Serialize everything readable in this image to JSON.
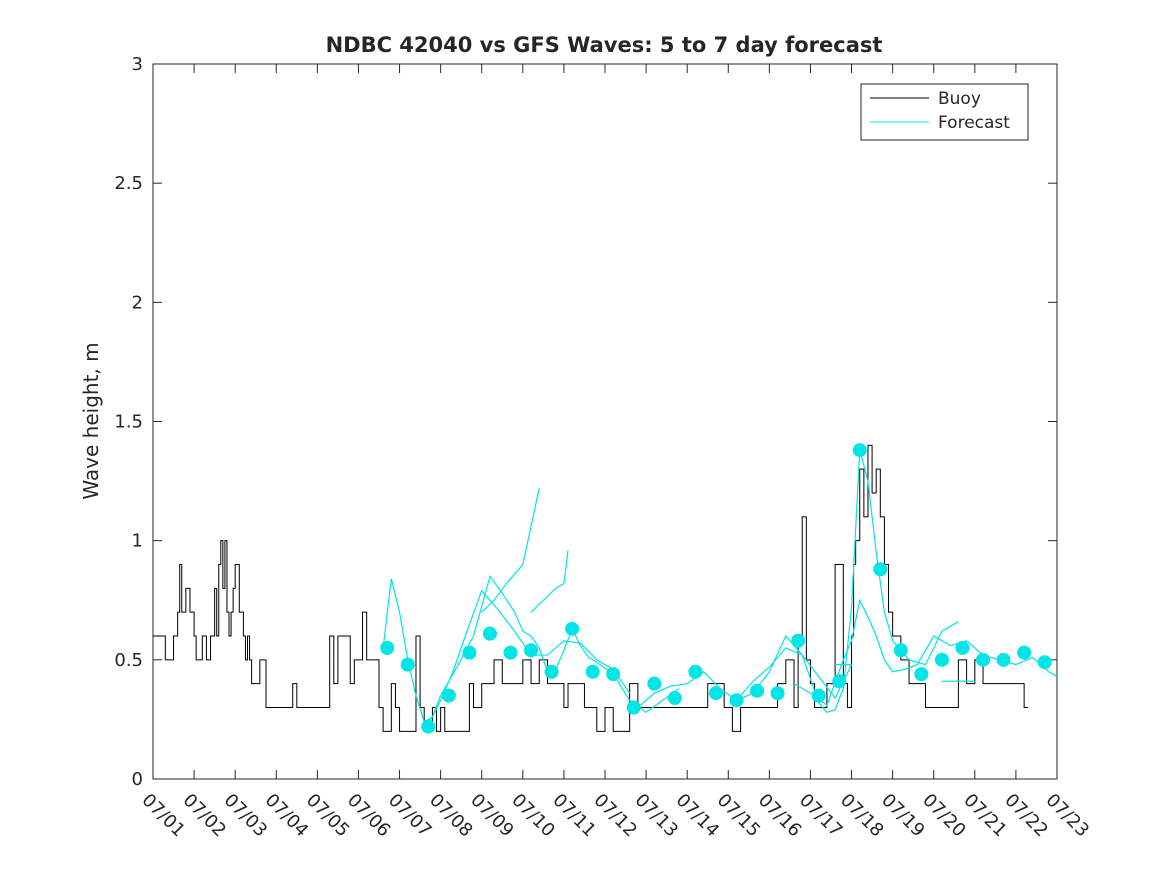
{
  "chart_data": {
    "type": "line",
    "title": "NDBC 42040 vs GFS Waves: 5 to 7 day forecast",
    "xlabel": "",
    "ylabel": "Wave height, m",
    "ylim": [
      0,
      3
    ],
    "yticks": [
      0,
      0.5,
      1,
      1.5,
      2,
      2.5,
      3
    ],
    "ytick_labels": [
      "0",
      "0.5",
      "1",
      "1.5",
      "2",
      "2.5",
      "3"
    ],
    "xlim": [
      1,
      23
    ],
    "xtick_labels": [
      "07/01",
      "07/02",
      "07/03",
      "07/04",
      "07/05",
      "07/06",
      "07/07",
      "07/08",
      "07/09",
      "07/10",
      "07/11",
      "07/12",
      "07/13",
      "07/14",
      "07/15",
      "07/16",
      "07/17",
      "07/18",
      "07/19",
      "07/20",
      "07/21",
      "07/22",
      "07/23"
    ],
    "legend": {
      "placement": "top-right",
      "entries": [
        {
          "label": "Buoy",
          "color": "#000000"
        },
        {
          "label": "Forecast",
          "color": "#00e5e5"
        }
      ]
    },
    "colors": {
      "buoy": "#000000",
      "forecast": "#00e5e5",
      "markers": "#00e5e5",
      "axes": "#262626"
    },
    "grid": false,
    "series": [
      {
        "name": "Buoy",
        "x": [
          1.0,
          1.3,
          1.5,
          1.6,
          1.65,
          1.7,
          1.8,
          1.9,
          2.0,
          2.05,
          2.2,
          2.3,
          2.4,
          2.5,
          2.55,
          2.6,
          2.65,
          2.7,
          2.75,
          2.8,
          2.85,
          2.9,
          2.95,
          3.0,
          3.1,
          3.2,
          3.25,
          3.3,
          3.35,
          3.4,
          3.5,
          3.6,
          3.75,
          3.9,
          4.0,
          4.2,
          4.4,
          4.5,
          4.6,
          4.8,
          5.0,
          5.1,
          5.3,
          5.4,
          5.5,
          5.7,
          5.8,
          5.9,
          6.0,
          6.1,
          6.2,
          6.4,
          6.5,
          6.6,
          6.8,
          6.9,
          7.0,
          7.1,
          7.2,
          7.4,
          7.5,
          7.6,
          7.8,
          7.9,
          8.0,
          8.1,
          8.3,
          8.5,
          8.7,
          8.8,
          9.0,
          9.2,
          9.3,
          9.5,
          9.7,
          9.8,
          10.0,
          10.2,
          10.4,
          10.6,
          10.8,
          11.0,
          11.1,
          11.2,
          11.4,
          11.5,
          11.6,
          11.8,
          12.0,
          12.2,
          12.4,
          12.6,
          12.8,
          13.0,
          13.2,
          13.5,
          13.8,
          14.0,
          14.1,
          14.3,
          14.5,
          14.7,
          14.9,
          15.0,
          15.1,
          15.3,
          15.5,
          15.7,
          15.9,
          16.0,
          16.2,
          16.4,
          16.6,
          16.7,
          16.8,
          16.9,
          17.0,
          17.1,
          17.2,
          17.4,
          17.6,
          17.8,
          17.9,
          18.0,
          18.05,
          18.1,
          18.2,
          18.3,
          18.4,
          18.5,
          18.6,
          18.7,
          18.8,
          18.9,
          19.0,
          19.2,
          19.4,
          19.6,
          19.8,
          20.0,
          20.2,
          20.4,
          20.6,
          20.8,
          21.0,
          21.2,
          21.4,
          21.6,
          21.8,
          22.0,
          22.2,
          22.3
        ],
        "y": [
          0.6,
          0.5,
          0.6,
          0.7,
          0.9,
          0.7,
          0.8,
          0.7,
          0.6,
          0.5,
          0.6,
          0.5,
          0.6,
          0.8,
          0.6,
          0.9,
          1.0,
          0.8,
          1.0,
          0.7,
          0.6,
          0.7,
          0.8,
          0.9,
          0.7,
          0.6,
          0.5,
          0.6,
          0.5,
          0.4,
          0.4,
          0.5,
          0.3,
          0.3,
          0.3,
          0.3,
          0.4,
          0.3,
          0.3,
          0.3,
          0.3,
          0.3,
          0.6,
          0.4,
          0.6,
          0.6,
          0.4,
          0.5,
          0.5,
          0.7,
          0.5,
          0.5,
          0.3,
          0.2,
          0.4,
          0.3,
          0.2,
          0.2,
          0.2,
          0.6,
          0.3,
          0.2,
          0.3,
          0.2,
          0.3,
          0.2,
          0.2,
          0.2,
          0.4,
          0.3,
          0.4,
          0.4,
          0.5,
          0.4,
          0.4,
          0.4,
          0.5,
          0.4,
          0.5,
          0.4,
          0.4,
          0.3,
          0.4,
          0.4,
          0.4,
          0.3,
          0.3,
          0.2,
          0.3,
          0.2,
          0.2,
          0.4,
          0.3,
          0.3,
          0.3,
          0.3,
          0.3,
          0.3,
          0.3,
          0.3,
          0.4,
          0.4,
          0.3,
          0.3,
          0.2,
          0.3,
          0.3,
          0.3,
          0.3,
          0.3,
          0.4,
          0.5,
          0.3,
          0.6,
          1.1,
          0.5,
          0.4,
          0.3,
          0.3,
          0.4,
          0.9,
          0.4,
          0.3,
          0.6,
          0.9,
          1.0,
          1.3,
          1.1,
          1.4,
          1.2,
          1.3,
          1.1,
          0.9,
          0.7,
          0.6,
          0.5,
          0.4,
          0.4,
          0.3,
          0.3,
          0.3,
          0.3,
          0.5,
          0.4,
          0.5,
          0.4,
          0.4,
          0.4,
          0.4,
          0.4,
          0.3,
          0.3
        ]
      },
      {
        "name": "Forecast",
        "runs": [
          {
            "x": [
              6.6,
              6.8,
              7.0,
              7.2,
              7.4,
              7.6,
              7.8,
              8.0,
              8.3,
              8.6,
              9.0,
              9.4,
              9.8,
              10.2,
              10.6,
              11.0,
              11.4,
              11.8,
              12.2,
              12.6
            ],
            "y": [
              0.55,
              0.84,
              0.7,
              0.5,
              0.35,
              0.24,
              0.26,
              0.33,
              0.45,
              0.6,
              0.79,
              0.71,
              0.62,
              0.52,
              0.52,
              0.58,
              0.57,
              0.5,
              0.46,
              0.36
            ]
          },
          {
            "x": [
              7.6,
              7.8,
              8.0,
              8.4,
              8.8,
              9.2,
              9.5,
              9.8,
              10.0,
              10.2,
              10.4,
              10.6,
              10.8,
              11.0,
              11.2,
              11.4,
              11.6,
              11.8,
              12.2,
              12.6,
              13.0,
              13.4,
              13.8
            ],
            "y": [
              0.22,
              0.26,
              0.35,
              0.47,
              0.6,
              0.85,
              0.78,
              0.7,
              0.62,
              0.6,
              0.55,
              0.45,
              0.46,
              0.54,
              0.63,
              0.56,
              0.51,
              0.49,
              0.44,
              0.33,
              0.28,
              0.33,
              0.38
            ]
          },
          {
            "x": [
              9.0,
              9.3,
              9.6,
              10.0,
              10.2,
              10.4
            ],
            "y": [
              0.7,
              0.75,
              0.82,
              0.9,
              1.06,
              1.22
            ]
          },
          {
            "x": [
              10.2,
              10.5,
              10.8,
              11.0,
              11.1
            ],
            "y": [
              0.7,
              0.75,
              0.8,
              0.82,
              0.96
            ]
          },
          {
            "x": [
              12.8,
              13.2,
              13.6,
              14.0,
              14.4,
              14.8,
              15.2,
              15.6,
              16.0,
              16.4,
              16.8,
              17.2,
              17.6,
              18.0
            ],
            "y": [
              0.3,
              0.36,
              0.39,
              0.4,
              0.45,
              0.38,
              0.33,
              0.41,
              0.47,
              0.55,
              0.52,
              0.43,
              0.34,
              0.48
            ]
          },
          {
            "x": [
              15.2,
              15.6,
              16.0,
              16.4,
              16.8,
              17.2,
              17.4,
              17.6,
              17.8,
              18.0,
              18.2,
              18.4,
              18.6,
              18.8,
              19.0,
              19.4,
              19.8,
              20.2,
              20.6
            ],
            "y": [
              0.33,
              0.36,
              0.45,
              0.6,
              0.52,
              0.32,
              0.28,
              0.29,
              0.38,
              0.72,
              1.38,
              1.25,
              0.95,
              0.7,
              0.58,
              0.5,
              0.48,
              0.62,
              0.66
            ]
          },
          {
            "x": [
              16.6,
              17.0,
              17.4,
              17.8,
              18.0,
              18.2,
              18.4,
              18.6,
              18.8,
              19.0,
              19.3,
              19.6,
              20.0,
              20.4,
              20.8,
              21.2,
              21.6,
              22.0,
              22.4,
              22.8,
              23.0
            ],
            "y": [
              0.4,
              0.36,
              0.31,
              0.5,
              0.58,
              0.75,
              0.68,
              0.6,
              0.5,
              0.45,
              0.46,
              0.48,
              0.6,
              0.56,
              0.58,
              0.52,
              0.5,
              0.48,
              0.51,
              0.45,
              0.43
            ]
          },
          {
            "x": [
              17.6,
              18.0
            ],
            "y": [
              0.48,
              0.48
            ]
          },
          {
            "x": [
              20.2,
              20.6,
              21.0
            ],
            "y": [
              0.41,
              0.41,
              0.41
            ]
          }
        ],
        "markers": {
          "x": [
            6.7,
            7.2,
            7.7,
            8.2,
            8.7,
            9.2,
            9.7,
            10.2,
            10.7,
            11.2,
            11.7,
            12.2,
            12.7,
            13.2,
            13.7,
            14.2,
            14.7,
            15.2,
            15.7,
            16.2,
            16.7,
            17.2,
            17.7,
            18.2,
            18.7,
            19.2,
            19.7,
            20.2,
            20.7,
            21.2,
            21.7,
            22.2,
            22.7
          ],
          "y": [
            0.55,
            0.48,
            0.22,
            0.35,
            0.53,
            0.61,
            0.53,
            0.54,
            0.45,
            0.63,
            0.45,
            0.44,
            0.3,
            0.4,
            0.34,
            0.45,
            0.36,
            0.33,
            0.37,
            0.36,
            0.58,
            0.35,
            0.41,
            1.38,
            0.88,
            0.54,
            0.44,
            0.5,
            0.55,
            0.5,
            0.5,
            0.53,
            0.49
          ]
        }
      }
    ]
  }
}
